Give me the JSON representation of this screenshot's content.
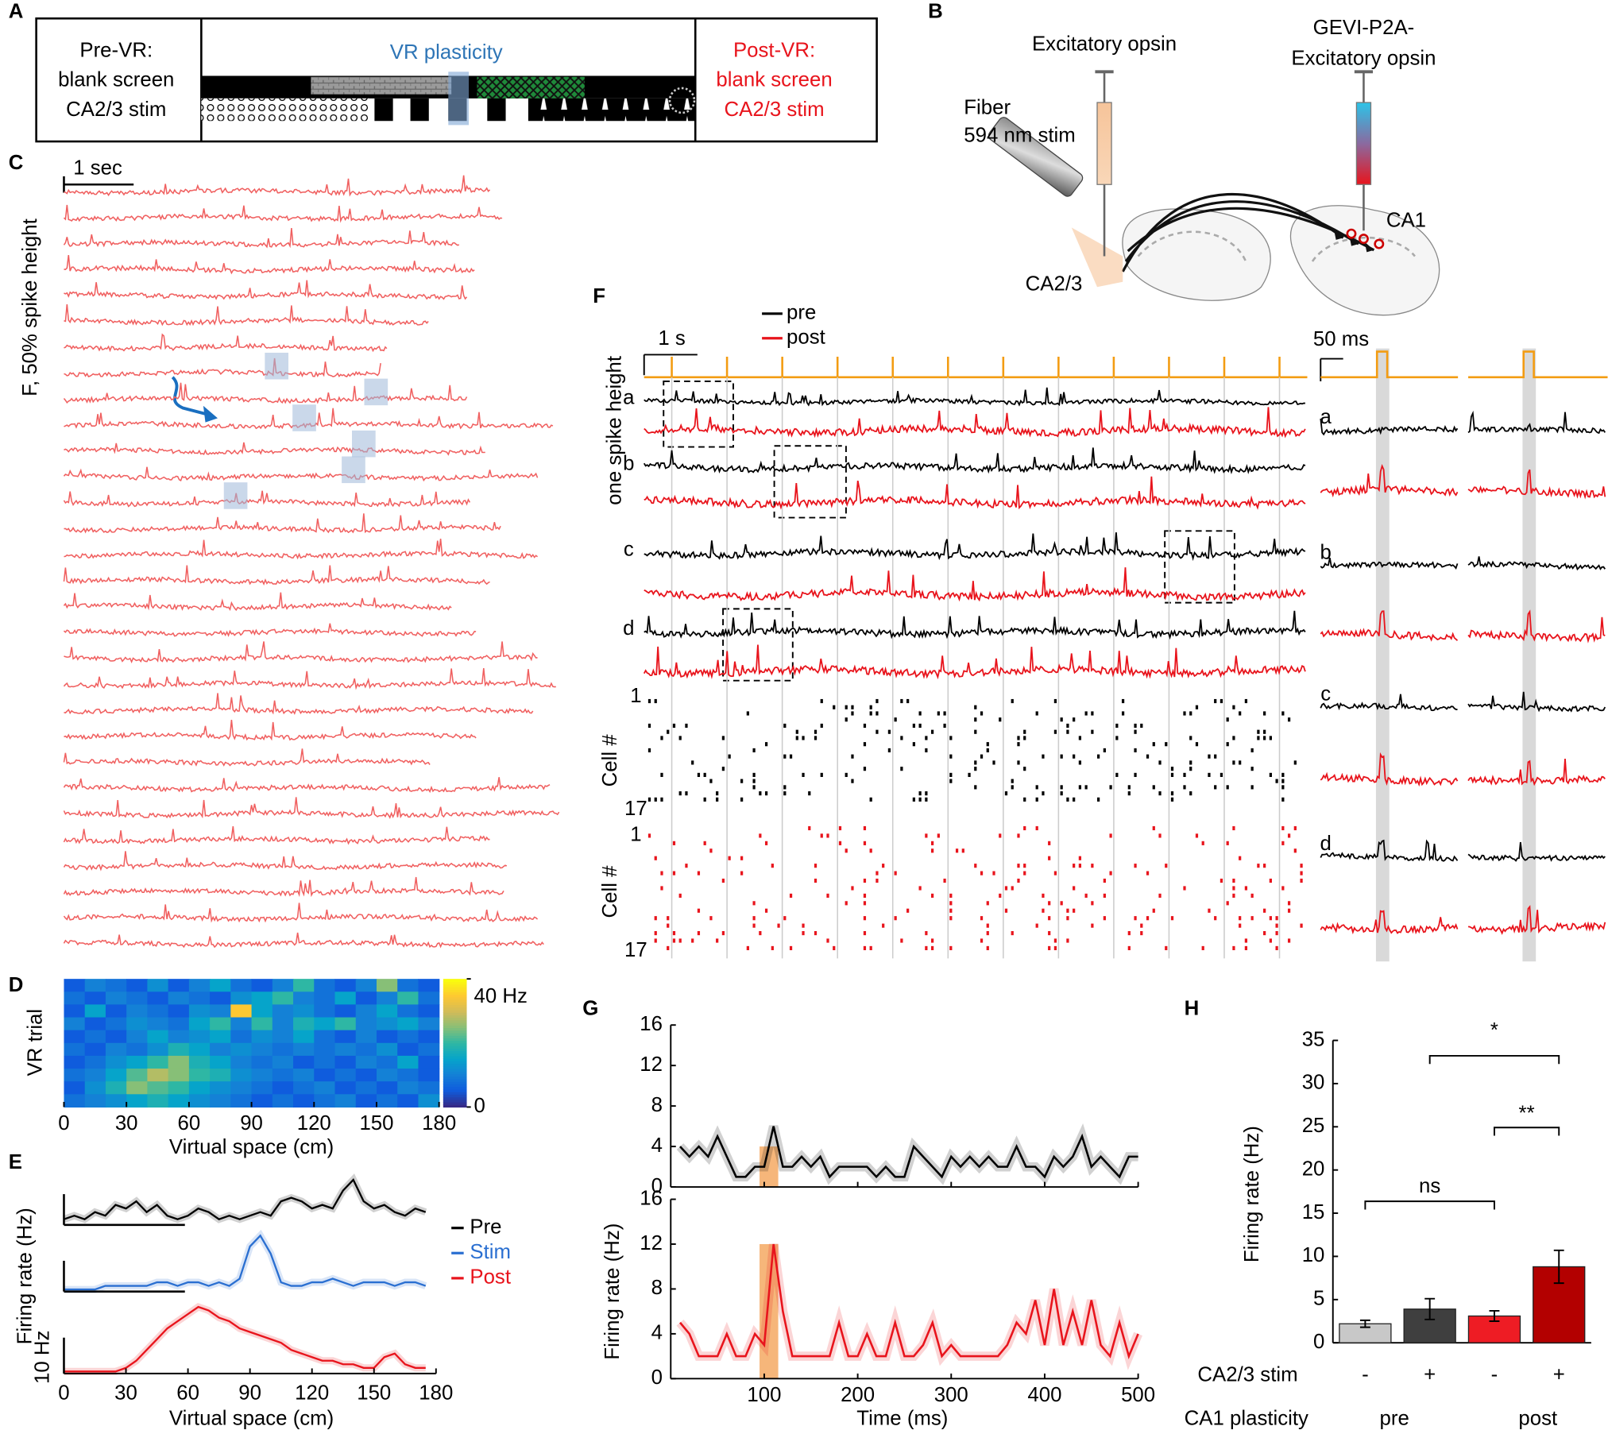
{
  "panel_labels": [
    "A",
    "B",
    "C",
    "D",
    "E",
    "F",
    "G",
    "H"
  ],
  "panel_a": {
    "pre": [
      "Pre-VR:",
      "blank screen",
      "CA2/3 stim"
    ],
    "center": "VR plasticity",
    "post": [
      "Post-VR:",
      "blank screen",
      "CA2/3 stim"
    ]
  },
  "panel_b": {
    "opsin": "Excitatory opsin",
    "gevi": [
      "GEVI-P2A-",
      "Excitatory opsin"
    ],
    "fiber": [
      "Fiber",
      "594 nm stim"
    ],
    "ca23": "CA2/3",
    "ca1": "CA1"
  },
  "panel_c": {
    "scale": "1 sec",
    "ylabel": "F, 50% spike height"
  },
  "panel_f": {
    "legend": [
      "pre",
      "post"
    ],
    "scale": "1 s",
    "inset_scale": "50 ms",
    "ylabel": "one spike height",
    "rows": [
      "a",
      "b",
      "c",
      "d"
    ],
    "raster_first": "1",
    "raster_last": "17",
    "raster_ylabel": "Cell #"
  },
  "chart_data": [
    {
      "type": "heatmap",
      "ylabel": "VR trial",
      "xlabel": "Virtual space (cm)",
      "xlim": [
        0,
        180
      ],
      "xticks": [
        0,
        30,
        60,
        90,
        120,
        150,
        180
      ],
      "clim": [
        0,
        40
      ],
      "cticks": [
        0,
        {
          "value": 40,
          "label": "40 Hz"
        }
      ],
      "colormap": "parula",
      "values": [
        [
          5,
          10,
          8,
          5,
          12,
          5,
          10,
          15,
          8,
          5,
          10,
          20,
          8,
          5,
          10,
          25,
          8,
          5
        ],
        [
          8,
          5,
          10,
          8,
          5,
          10,
          8,
          5,
          12,
          15,
          20,
          10,
          8,
          15,
          5,
          10,
          20,
          8
        ],
        [
          5,
          15,
          5,
          10,
          8,
          5,
          12,
          10,
          35,
          15,
          10,
          12,
          8,
          5,
          10,
          15,
          8,
          5
        ],
        [
          10,
          5,
          8,
          12,
          10,
          8,
          15,
          20,
          10,
          20,
          10,
          18,
          15,
          20,
          10,
          12,
          15,
          10
        ],
        [
          5,
          8,
          5,
          10,
          15,
          10,
          12,
          15,
          8,
          12,
          10,
          15,
          8,
          5,
          10,
          5,
          8,
          5
        ],
        [
          8,
          5,
          10,
          8,
          12,
          18,
          15,
          10,
          12,
          10,
          8,
          10,
          8,
          10,
          8,
          12,
          5,
          8
        ],
        [
          5,
          8,
          12,
          15,
          20,
          25,
          18,
          15,
          10,
          8,
          10,
          5,
          8,
          5,
          10,
          8,
          15,
          5
        ],
        [
          8,
          10,
          15,
          22,
          28,
          25,
          20,
          18,
          12,
          10,
          8,
          10,
          5,
          8,
          5,
          10,
          8,
          5
        ],
        [
          5,
          12,
          18,
          25,
          22,
          20,
          15,
          12,
          10,
          8,
          5,
          8,
          10,
          5,
          8,
          5,
          10,
          8
        ],
        [
          8,
          10,
          12,
          15,
          18,
          15,
          12,
          10,
          8,
          5,
          8,
          5,
          8,
          10,
          5,
          8,
          5,
          12
        ]
      ]
    },
    {
      "type": "line",
      "ylabel": "Firing rate (Hz)",
      "xlabel": "Virtual space (cm)",
      "xlim": [
        0,
        180
      ],
      "xticks": [
        0,
        30,
        60,
        90,
        120,
        150,
        180
      ],
      "ylim": [
        0,
        20
      ],
      "scale_bar": {
        "value": 10,
        "label": "10 Hz"
      },
      "legend": "right",
      "x": [
        0,
        5,
        10,
        15,
        20,
        25,
        30,
        35,
        40,
        45,
        50,
        55,
        60,
        65,
        70,
        75,
        80,
        85,
        90,
        95,
        100,
        105,
        110,
        115,
        120,
        125,
        130,
        135,
        140,
        145,
        150,
        155,
        160,
        165,
        170,
        175
      ],
      "series": [
        {
          "name": "Pre",
          "color": "#000000",
          "values": [
            1,
            2,
            1,
            3,
            2,
            5,
            4,
            6,
            3,
            5,
            2,
            1,
            2,
            4,
            3,
            1,
            2,
            1,
            2,
            3,
            2,
            6,
            7,
            6,
            4,
            5,
            4,
            9,
            12,
            6,
            4,
            5,
            3,
            2,
            4,
            3
          ]
        },
        {
          "name": "Stim",
          "color": "#2a6fd1",
          "values": [
            0,
            0,
            0,
            0,
            1,
            1,
            1,
            1,
            1,
            2,
            2,
            1,
            2,
            2,
            1,
            2,
            1,
            3,
            12,
            15,
            10,
            2,
            1,
            1,
            2,
            2,
            3,
            2,
            1,
            2,
            2,
            2,
            1,
            2,
            2,
            1
          ]
        },
        {
          "name": "Post",
          "color": "#e8141c",
          "values": [
            0,
            0,
            0,
            0,
            0,
            0,
            1,
            3,
            6,
            9,
            12,
            14,
            16,
            18,
            17,
            15,
            14,
            12,
            11,
            10,
            9,
            8,
            6,
            5,
            4,
            3,
            3,
            2,
            2,
            1,
            1,
            4,
            5,
            2,
            1,
            1
          ]
        }
      ]
    },
    {
      "type": "line",
      "ylabel": "Firing rate (Hz)",
      "xlabel": "Time (ms)",
      "xlim": [
        0,
        500
      ],
      "xticks": [
        100,
        200,
        300,
        400,
        500
      ],
      "ylim": [
        0,
        16
      ],
      "yticks": [
        0,
        4,
        8,
        12,
        16
      ],
      "stim_window": [
        95,
        115
      ],
      "x": [
        10,
        20,
        30,
        40,
        50,
        60,
        70,
        80,
        90,
        100,
        110,
        120,
        130,
        140,
        150,
        160,
        170,
        180,
        190,
        200,
        210,
        220,
        230,
        240,
        250,
        260,
        270,
        280,
        290,
        300,
        310,
        320,
        330,
        340,
        350,
        360,
        370,
        380,
        390,
        400,
        410,
        420,
        430,
        440,
        450,
        460,
        470,
        480,
        490,
        500
      ],
      "series": [
        {
          "color": "#000000",
          "values": [
            4,
            3,
            4,
            3,
            5,
            3,
            1,
            1,
            2,
            2,
            6,
            2,
            2,
            3,
            2,
            3,
            1,
            2,
            2,
            2,
            2,
            1,
            2,
            1,
            1,
            4,
            3,
            2,
            1,
            3,
            2,
            3,
            2,
            3,
            2,
            2,
            4,
            2,
            2,
            1,
            3,
            2,
            3,
            5,
            2,
            3,
            2,
            1,
            3,
            3
          ]
        },
        {
          "color": "#e8141c",
          "values": [
            5,
            4,
            2,
            2,
            2,
            4,
            2,
            2,
            4,
            3,
            12,
            6,
            2,
            2,
            2,
            2,
            2,
            5,
            2,
            2,
            4,
            2,
            2,
            5,
            2,
            2,
            3,
            5,
            2,
            3,
            2,
            2,
            2,
            2,
            2,
            3,
            5,
            4,
            7,
            3,
            8,
            3,
            6,
            3,
            7,
            3,
            2,
            5,
            2,
            4
          ]
        }
      ]
    },
    {
      "type": "bar",
      "ylabel": "Firing rate (Hz)",
      "ylim": [
        0,
        35
      ],
      "yticks": [
        0,
        5,
        10,
        15,
        20,
        25,
        30,
        35
      ],
      "categories": [
        "-",
        "+",
        "-",
        "+"
      ],
      "values": [
        2.2,
        3.9,
        3.1,
        8.8
      ],
      "errors": [
        0.4,
        1.2,
        0.6,
        1.9
      ],
      "colors": [
        "#c8c8c8",
        "#3f3f3f",
        "#ee1c24",
        "#b30000"
      ],
      "row_labels": [
        "CA2/3 stim",
        "CA1 plasticity"
      ],
      "groups": [
        "pre",
        "post"
      ],
      "annotations": [
        "ns",
        "**",
        "*"
      ]
    }
  ]
}
